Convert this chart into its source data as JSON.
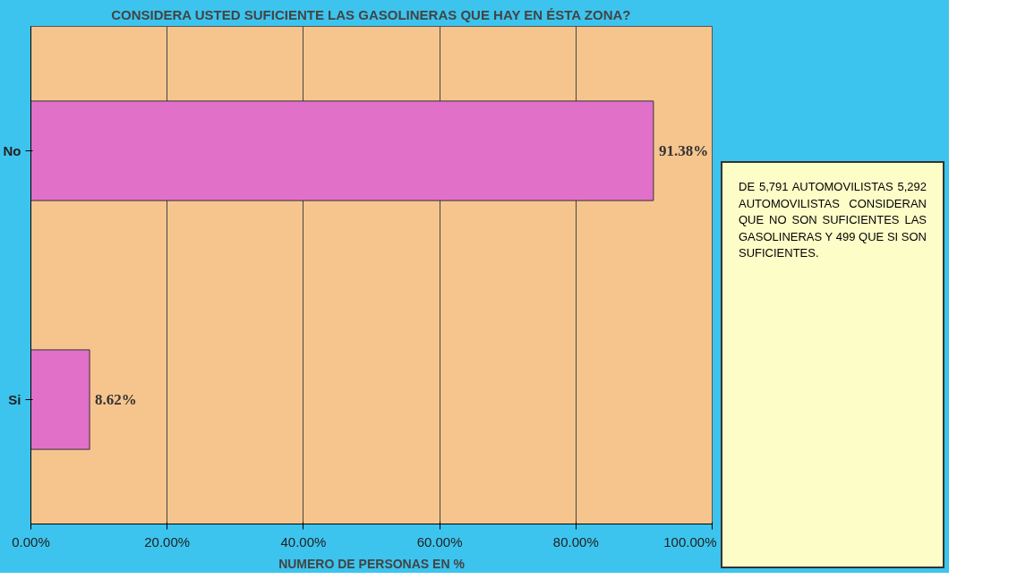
{
  "chart_data": {
    "type": "bar",
    "orientation": "horizontal",
    "title": "CONSIDERA USTED SUFICIENTE LAS GASOLINERAS QUE HAY EN ÉSTA ZONA?",
    "xlabel": "NUMERO DE PERSONAS EN %",
    "categories": [
      "No",
      "Si"
    ],
    "values": [
      91.38,
      8.62
    ],
    "value_labels": [
      "91.38%",
      "8.62%"
    ],
    "color": "#e070c8",
    "xlim": [
      0,
      100
    ],
    "xticks": [
      {
        "value": 0,
        "label": "0.00%"
      },
      {
        "value": 20,
        "label": "20.00%"
      },
      {
        "value": 40,
        "label": "40.00%"
      },
      {
        "value": 60,
        "label": "60.00%"
      },
      {
        "value": 80,
        "label": "80.00%"
      },
      {
        "value": 100,
        "label": "100.00%"
      }
    ],
    "grid": "x",
    "annotations": [
      "DE 5,791 AUTOMOVILISTAS 5,292 AUTOMOVILISTAS CONSIDERAN QUE NO SON SUFICIENTES LAS GASOLINERAS Y 499 QUE SI SON SUFICIENTES."
    ]
  }
}
